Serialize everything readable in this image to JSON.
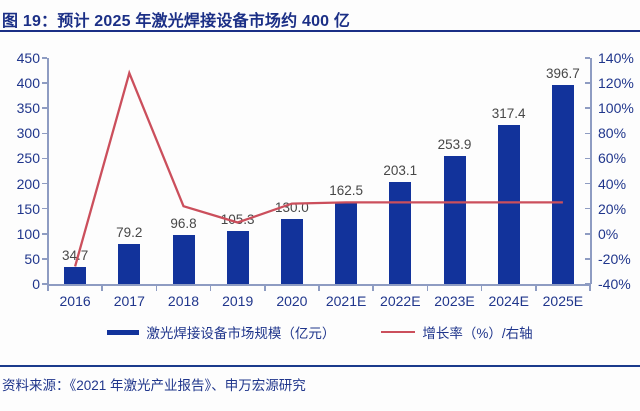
{
  "figure": {
    "title": "图 19：预计 2025 年激光焊接设备市场约 400 亿",
    "source": "资料来源：《2021 年激光产业报告》、申万宏源研究"
  },
  "chart_data": {
    "type": "bar",
    "title": "图 19：预计 2025 年激光焊接设备市场约 400 亿",
    "categories": [
      "2016",
      "2017",
      "2018",
      "2019",
      "2020",
      "2021E",
      "2022E",
      "2023E",
      "2024E",
      "2025E"
    ],
    "series": [
      {
        "name": "激光焊接设备市场规模（亿元）",
        "type": "bar",
        "axis": "left",
        "values": [
          34.7,
          79.2,
          96.8,
          105.3,
          130.0,
          162.5,
          203.1,
          253.9,
          317.4,
          396.7
        ],
        "labels": [
          "34.7",
          "79.2",
          "96.8",
          "105.3",
          "130.0",
          "162.5",
          "203.1",
          "253.9",
          "317.4",
          "396.7"
        ],
        "color": "#12339b"
      },
      {
        "name": "增长率（%）/右轴",
        "type": "line",
        "axis": "right",
        "values_estimated_pct": [
          -26,
          128,
          22,
          9,
          24,
          25,
          25,
          25,
          25,
          25
        ],
        "color": "#cb4f5c"
      }
    ],
    "left_axis": {
      "min": 0,
      "max": 450,
      "step": 50,
      "ticks": [
        "450",
        "400",
        "350",
        "300",
        "250",
        "200",
        "150",
        "100",
        "50",
        "0"
      ]
    },
    "right_axis": {
      "min": -40,
      "max": 140,
      "step": 20,
      "ticks": [
        "140%",
        "120%",
        "100%",
        "80%",
        "60%",
        "40%",
        "20%",
        "0%",
        "-20%",
        "-40%"
      ]
    },
    "grid": false,
    "legend_position": "bottom"
  },
  "colors": {
    "navy_text": "#20368c",
    "title_navy": "#1b2f86",
    "bar_blue": "#12339b",
    "line_red": "#cb4f5c",
    "axis_gray": "#8e9cc2",
    "data_label": "#474747"
  }
}
